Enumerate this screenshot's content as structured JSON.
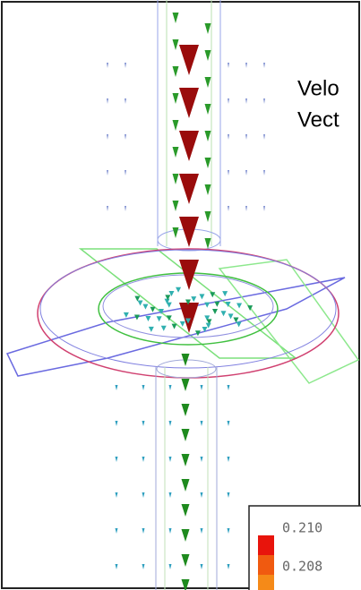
{
  "title": {
    "lines": [
      "Velo",
      "Vect"
    ]
  },
  "legend": {
    "labels": [
      "0.210",
      "0.208"
    ]
  }
}
